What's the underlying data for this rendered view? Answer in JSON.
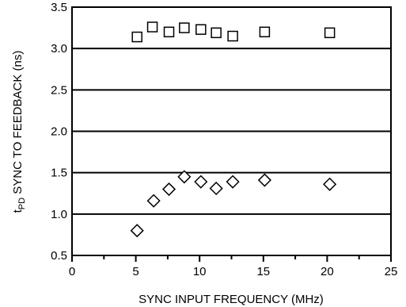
{
  "chart_data": {
    "type": "scatter",
    "xlabel": "SYNC INPUT FREQUENCY (MHz)",
    "ylabel_main": "t",
    "ylabel_sub": "PD",
    "ylabel_rest": " SYNC TO FEEDBACK (ns)",
    "xlim": [
      0,
      25
    ],
    "ylim": [
      0.5,
      3.5
    ],
    "x_ticks": [
      0,
      5,
      10,
      15,
      20,
      25
    ],
    "x_minor_ticks": [
      2.5,
      7.5,
      12.5,
      17.5,
      22.5
    ],
    "x_tick_labels": [
      "0",
      "5",
      "10",
      "15",
      "20",
      "25"
    ],
    "y_ticks": [
      0.5,
      1.0,
      1.5,
      2.0,
      2.5,
      3.0,
      3.5
    ],
    "y_tick_labels": [
      "0.5",
      "1.0",
      "1.5",
      "2.0",
      "2.5",
      "3.0",
      "3.5"
    ],
    "grid": "horizontal",
    "series": [
      {
        "marker": "square",
        "points": [
          {
            "x": 5.1,
            "y": 3.14
          },
          {
            "x": 6.3,
            "y": 3.26
          },
          {
            "x": 7.6,
            "y": 3.2
          },
          {
            "x": 8.8,
            "y": 3.25
          },
          {
            "x": 10.1,
            "y": 3.23
          },
          {
            "x": 11.3,
            "y": 3.19
          },
          {
            "x": 12.6,
            "y": 3.15
          },
          {
            "x": 15.1,
            "y": 3.2
          },
          {
            "x": 20.2,
            "y": 3.19
          }
        ]
      },
      {
        "marker": "diamond",
        "points": [
          {
            "x": 5.1,
            "y": 0.8
          },
          {
            "x": 6.4,
            "y": 1.16
          },
          {
            "x": 7.6,
            "y": 1.3
          },
          {
            "x": 8.8,
            "y": 1.45
          },
          {
            "x": 10.1,
            "y": 1.39
          },
          {
            "x": 11.3,
            "y": 1.31
          },
          {
            "x": 12.6,
            "y": 1.39
          },
          {
            "x": 15.1,
            "y": 1.41
          },
          {
            "x": 20.2,
            "y": 1.36
          }
        ]
      }
    ]
  }
}
